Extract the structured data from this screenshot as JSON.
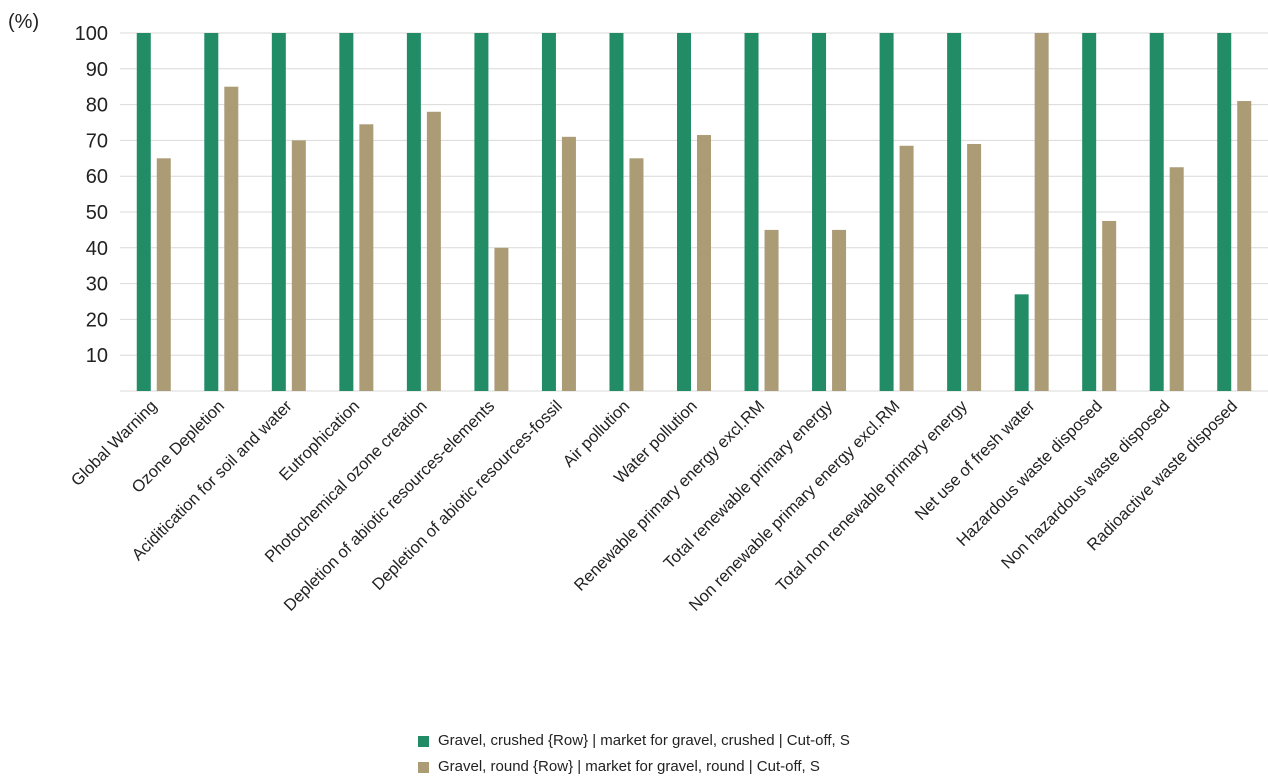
{
  "chart_data": {
    "type": "bar",
    "ylabel": "(%)",
    "ylim": [
      0,
      100
    ],
    "yticks": [
      "10",
      "20",
      "30",
      "40",
      "50",
      "60",
      "70",
      "80",
      "90",
      "100"
    ],
    "grid": true,
    "legend_position": "bottom",
    "categories": [
      "Global Warning",
      "Ozone Depletion",
      "Aciditication for soil and water",
      "Eutrophication",
      "Photochemical ozone creation",
      "Depletion of abiotic resources-elements",
      "Depletion of abiotic resources-fossil",
      "Air pollution",
      "Water pollution",
      "Renewable primary energy excl.RM",
      "Total renewable primary energy",
      "Non renewable primary energy excl.RM",
      "Total non renewable primary energy",
      "Net use of fresh water",
      "Hazardous waste disposed",
      "Non hazardous waste disposed",
      "Radioactive waste disposed"
    ],
    "series": [
      {
        "name": "Gravel, crushed {Row} | market for gravel, crushed | Cut-off, S",
        "color": "#218c66",
        "values": [
          100,
          100,
          100,
          100,
          100,
          100,
          100,
          100,
          100,
          100,
          100,
          100,
          100,
          27,
          100,
          100,
          100
        ]
      },
      {
        "name": "Gravel, round {Row} | market for gravel, round | Cut-off, S",
        "color": "#ab9c76",
        "values": [
          65,
          85,
          70,
          74.5,
          78,
          40,
          71,
          65,
          71.5,
          45,
          45,
          68.5,
          69,
          100,
          47.5,
          62.5,
          81
        ]
      }
    ]
  }
}
